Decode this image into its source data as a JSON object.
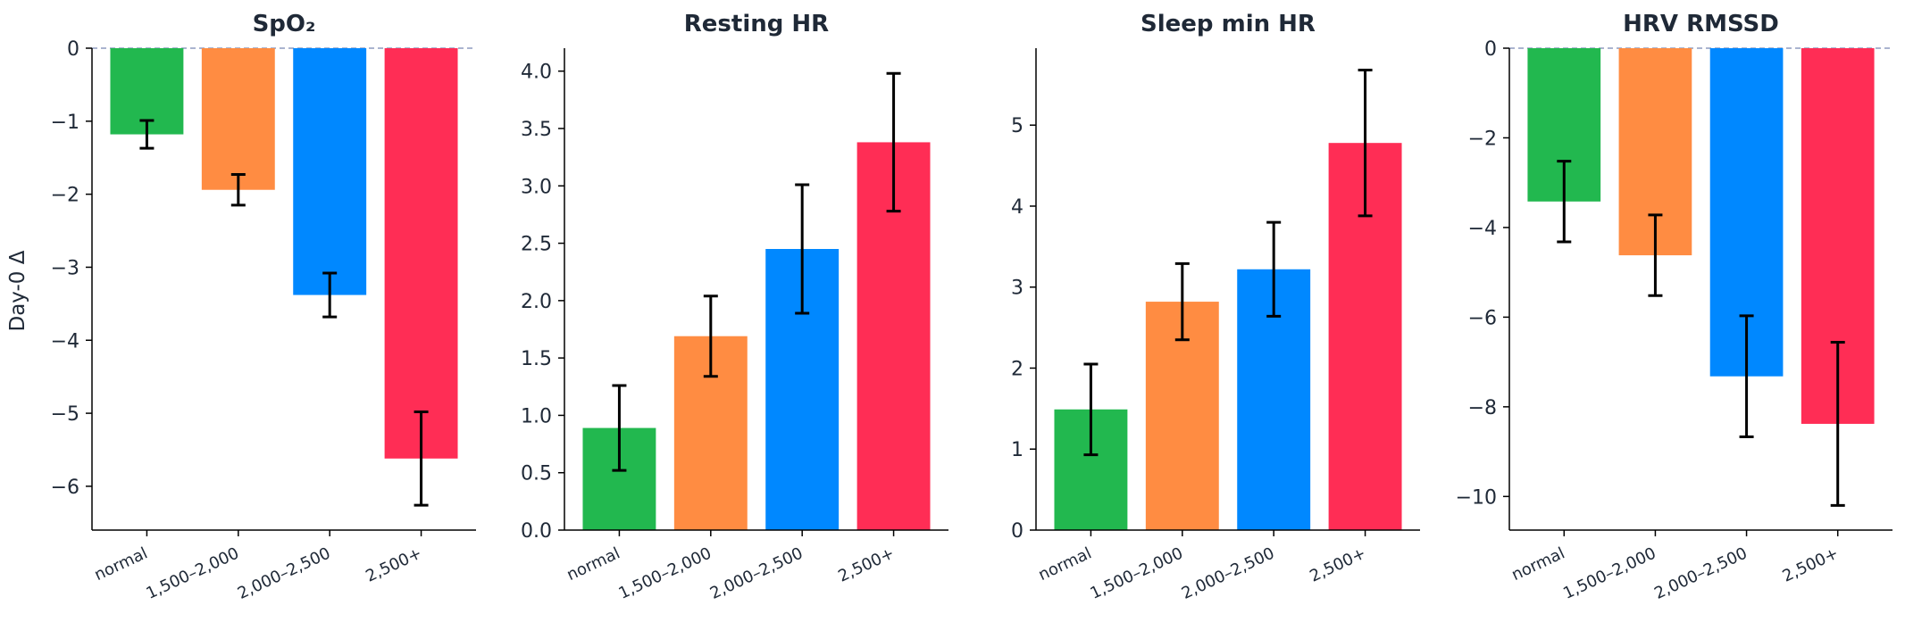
{
  "figure": {
    "ylabel": "Day-0 Δ",
    "categories": [
      "normal",
      "1,500–2,000",
      "2,000–2,500",
      "2,500+"
    ],
    "category_colors": [
      "#22b84f",
      "#ff8c42",
      "#0088ff",
      "#ff2d55"
    ],
    "zero_line_color": "#8e9bbf"
  },
  "chart_data": [
    {
      "type": "bar",
      "title": "SpO₂",
      "categories": [
        "normal",
        "1,500–2,000",
        "2,000–2,500",
        "2,500+"
      ],
      "values": [
        -1.18,
        -1.94,
        -3.38,
        -5.62
      ],
      "error": [
        0.19,
        0.21,
        0.3,
        0.64
      ],
      "ylim": [
        -6.6,
        0
      ],
      "yticks": [
        0,
        -1,
        -2,
        -3,
        -4,
        -5,
        -6
      ],
      "zero_dashed": true,
      "grid": false
    },
    {
      "type": "bar",
      "title": "Resting HR",
      "categories": [
        "normal",
        "1,500–2,000",
        "2,000–2,500",
        "2,500+"
      ],
      "values": [
        0.89,
        1.69,
        2.45,
        3.38
      ],
      "error": [
        0.37,
        0.35,
        0.56,
        0.6
      ],
      "ylim": [
        0,
        4.2
      ],
      "yticks": [
        0.0,
        0.5,
        1.0,
        1.5,
        2.0,
        2.5,
        3.0,
        3.5,
        4.0
      ],
      "tick_decimals": 1,
      "zero_dashed": false,
      "grid": false
    },
    {
      "type": "bar",
      "title": "Sleep min HR",
      "categories": [
        "normal",
        "1,500–2,000",
        "2,000–2,500",
        "2,500+"
      ],
      "values": [
        1.49,
        2.82,
        3.22,
        4.78
      ],
      "error": [
        0.56,
        0.47,
        0.58,
        0.9
      ],
      "ylim": [
        0,
        5.95
      ],
      "yticks": [
        0,
        1,
        2,
        3,
        4,
        5
      ],
      "zero_dashed": false,
      "grid": false
    },
    {
      "type": "bar",
      "title": "HRV RMSSD",
      "categories": [
        "normal",
        "1,500–2,000",
        "2,000–2,500",
        "2,500+"
      ],
      "values": [
        -3.42,
        -4.62,
        -7.32,
        -8.38
      ],
      "error": [
        0.9,
        0.9,
        1.35,
        1.82
      ],
      "ylim": [
        -10.75,
        0
      ],
      "yticks": [
        0,
        -2,
        -4,
        -6,
        -8,
        -10
      ],
      "zero_dashed": true,
      "grid": false
    }
  ]
}
